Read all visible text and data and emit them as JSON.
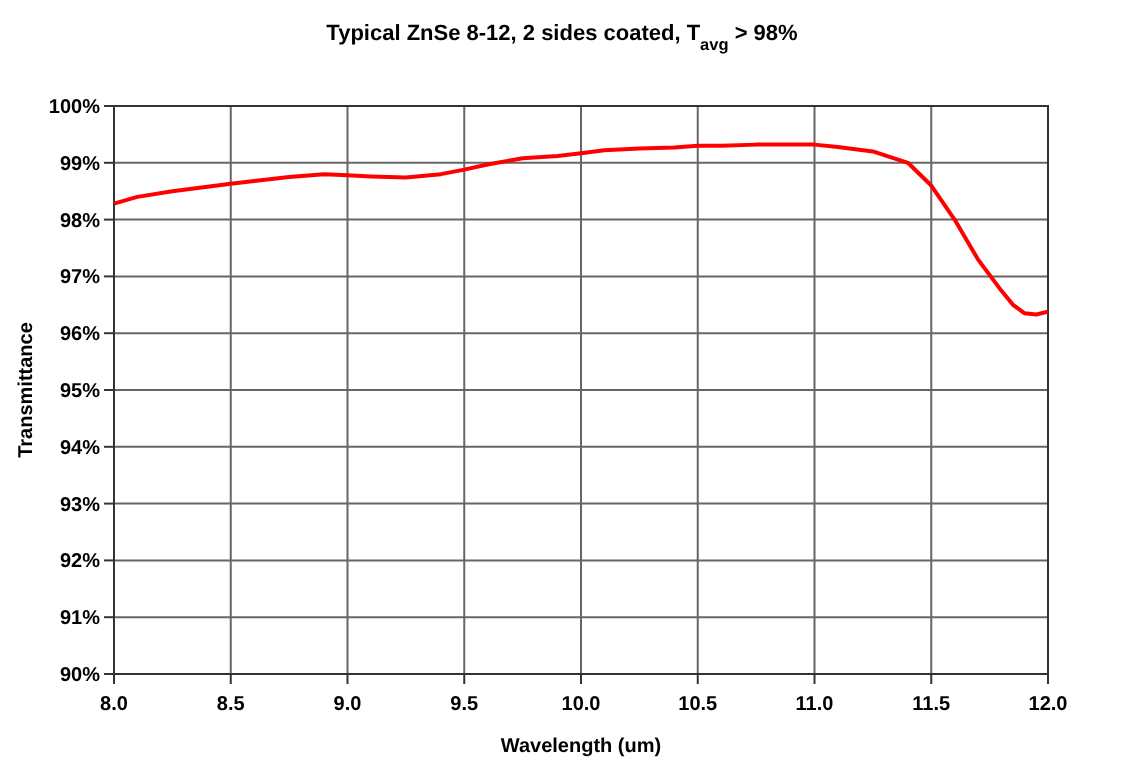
{
  "chart_data": {
    "type": "line",
    "title": "Typical ZnSe 8-12, 2 sides coated, T$_{avg}$ > 98%",
    "xlabel": "Wavelength (um)",
    "ylabel": "Transmittance",
    "xlim": [
      8,
      12
    ],
    "xticks": [
      {
        "value": 8,
        "label": "8.0"
      },
      {
        "value": 8.5,
        "label": "8.5"
      },
      {
        "value": 9,
        "label": "9.0"
      },
      {
        "value": 9.5,
        "label": "9.5"
      },
      {
        "value": 10,
        "label": "10.0"
      },
      {
        "value": 10.5,
        "label": "10.5"
      },
      {
        "value": 11,
        "label": "11.0"
      },
      {
        "value": 11.5,
        "label": "11.5"
      },
      {
        "value": 12,
        "label": "12.0"
      }
    ],
    "ylim": [
      90,
      100
    ],
    "yticks": [
      {
        "value": 90,
        "label": "90%"
      },
      {
        "value": 91,
        "label": "91%"
      },
      {
        "value": 92,
        "label": "92%"
      },
      {
        "value": 93,
        "label": "93%"
      },
      {
        "value": 94,
        "label": "94%"
      },
      {
        "value": 95,
        "label": "95%"
      },
      {
        "value": 96,
        "label": "96%"
      },
      {
        "value": 97,
        "label": "97%"
      },
      {
        "value": 98,
        "label": "98%"
      },
      {
        "value": 99,
        "label": "99%"
      },
      {
        "value": 100,
        "label": "100%"
      }
    ],
    "grid": true,
    "marker": "none",
    "line_style": "solid",
    "x": [
      8.0,
      8.1,
      8.25,
      8.4,
      8.5,
      8.6,
      8.75,
      8.9,
      9.0,
      9.1,
      9.25,
      9.4,
      9.5,
      9.6,
      9.75,
      9.9,
      10.0,
      10.1,
      10.25,
      10.4,
      10.5,
      10.6,
      10.75,
      10.9,
      11.0,
      11.1,
      11.25,
      11.4,
      11.5,
      11.6,
      11.7,
      11.8,
      11.85,
      11.9,
      11.95,
      12.0
    ],
    "series": [
      {
        "color": "#ff0000",
        "values": [
          98.28,
          98.4,
          98.5,
          98.58,
          98.63,
          98.68,
          98.75,
          98.8,
          98.78,
          98.76,
          98.74,
          98.8,
          98.88,
          98.97,
          99.08,
          99.12,
          99.17,
          99.22,
          99.25,
          99.27,
          99.3,
          99.3,
          99.32,
          99.32,
          99.32,
          99.28,
          99.2,
          99.0,
          98.6,
          98.0,
          97.3,
          96.75,
          96.5,
          96.35,
          96.33,
          96.38
        ]
      }
    ]
  }
}
